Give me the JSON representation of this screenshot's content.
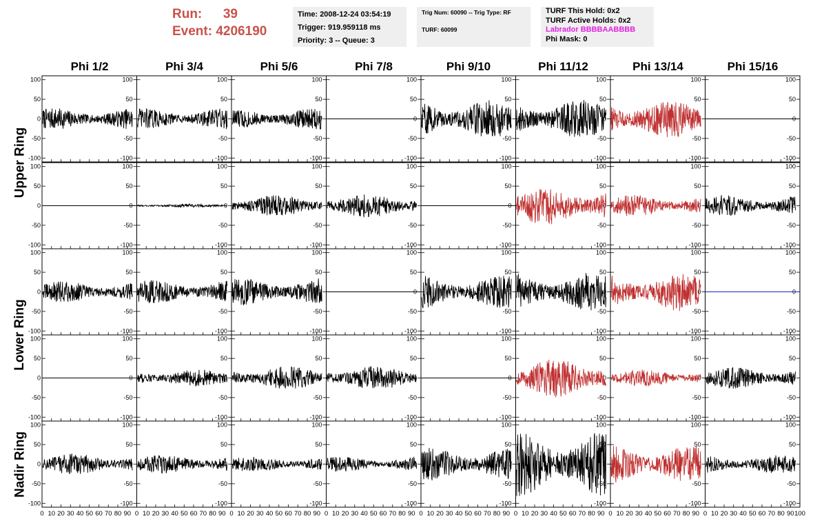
{
  "header": {
    "run_label": "Run:",
    "run_value": "39",
    "event_label": "Event:",
    "event_value": "4206190",
    "time": "Time: 2008-12-24 03:54:19",
    "trigger": "Trigger: 919.959118 ms",
    "priority": "Priority: 3 -- Queue: 3",
    "trig_num": "Trig Num: 60090 -- Trig Type: RF",
    "turf": "TURF: 60099",
    "turf_hold": "TURF This Hold: 0x2",
    "turf_active": "TURF Active Holds: 0x2",
    "labrador": "Labrador BBBBAABBBB",
    "phi_mask": "Phi Mask: 0"
  },
  "colors": {
    "run_text": "#c8524a",
    "labrador": "#e020e0",
    "trace_black": "#000000",
    "trace_red": "#c03030",
    "trace_blue": "#2020c0"
  },
  "chart_data": {
    "type": "line",
    "columns": [
      "Phi 1/2",
      "Phi 3/4",
      "Phi 5/6",
      "Phi 7/8",
      "Phi 9/10",
      "Phi 11/12",
      "Phi 13/14",
      "Phi 15/16"
    ],
    "rings": [
      {
        "label": "Upper Ring",
        "rows": 2
      },
      {
        "label": "Lower Ring",
        "rows": 2
      },
      {
        "label": "Nadir Ring",
        "rows": 1
      }
    ],
    "xlim": [
      0,
      100
    ],
    "ylim": [
      -110,
      110
    ],
    "x_ticks": [
      "0",
      "10",
      "20",
      "30",
      "40",
      "50",
      "60",
      "70",
      "80",
      "90",
      "100"
    ],
    "y_ticks": [
      "100",
      "50",
      "0",
      "-50",
      "-100"
    ],
    "panels": [
      [
        {
          "amp": 25,
          "color": "black"
        },
        {
          "amp": 25,
          "color": "black"
        },
        {
          "amp": 25,
          "color": "black"
        },
        {
          "amp": 0,
          "color": "black"
        },
        {
          "amp": 45,
          "color": "black"
        },
        {
          "amp": 45,
          "color": "black"
        },
        {
          "amp": 45,
          "color": "red"
        },
        {
          "amp": 0,
          "color": "black"
        }
      ],
      [
        {
          "amp": 0,
          "color": "black"
        },
        {
          "amp": 4,
          "color": "black"
        },
        {
          "amp": 25,
          "color": "black"
        },
        {
          "amp": 28,
          "color": "black"
        },
        {
          "amp": 0,
          "color": "black"
        },
        {
          "amp": 45,
          "color": "red"
        },
        {
          "amp": 25,
          "color": "red"
        },
        {
          "amp": 25,
          "color": "black"
        }
      ],
      [
        {
          "amp": 25,
          "color": "black"
        },
        {
          "amp": 28,
          "color": "black"
        },
        {
          "amp": 32,
          "color": "black"
        },
        {
          "amp": 0,
          "color": "black"
        },
        {
          "amp": 38,
          "color": "black"
        },
        {
          "amp": 45,
          "color": "black"
        },
        {
          "amp": 45,
          "color": "red"
        },
        {
          "amp": 0,
          "color": "blue"
        }
      ],
      [
        {
          "amp": 0,
          "color": "black"
        },
        {
          "amp": 20,
          "color": "black"
        },
        {
          "amp": 28,
          "color": "black"
        },
        {
          "amp": 28,
          "color": "black"
        },
        {
          "amp": 0,
          "color": "black"
        },
        {
          "amp": 45,
          "color": "red"
        },
        {
          "amp": 20,
          "color": "red"
        },
        {
          "amp": 25,
          "color": "black"
        }
      ],
      [
        {
          "amp": 25,
          "color": "black"
        },
        {
          "amp": 22,
          "color": "black"
        },
        {
          "amp": 18,
          "color": "black"
        },
        {
          "amp": 18,
          "color": "black"
        },
        {
          "amp": 38,
          "color": "black"
        },
        {
          "amp": 75,
          "color": "black"
        },
        {
          "amp": 45,
          "color": "red"
        },
        {
          "amp": 22,
          "color": "black"
        }
      ]
    ]
  }
}
